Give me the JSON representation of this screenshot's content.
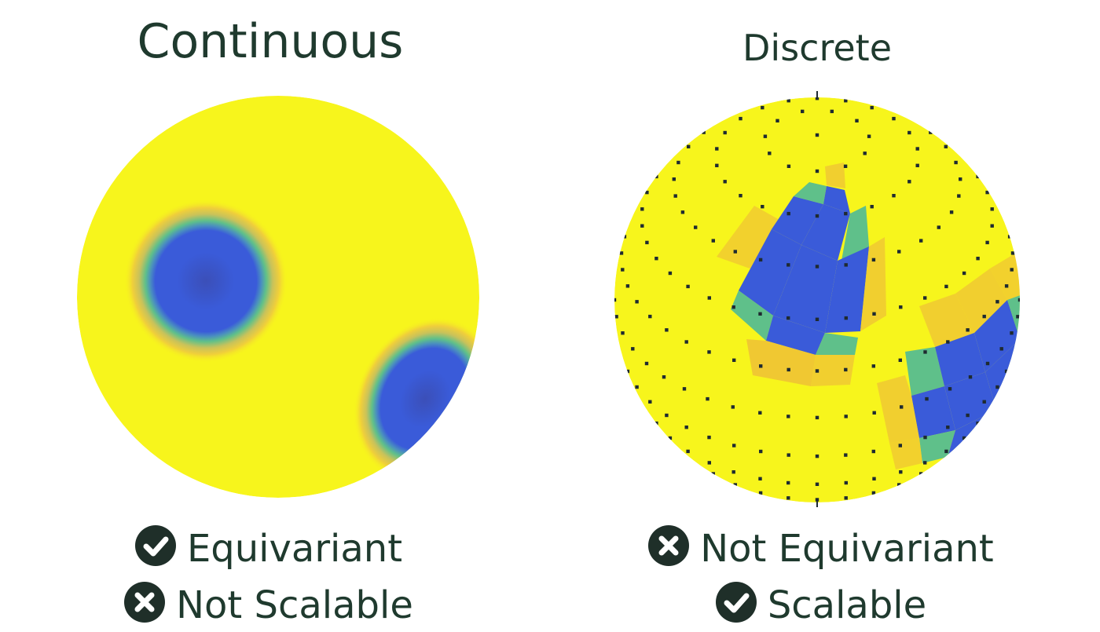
{
  "left": {
    "title": "Continuous",
    "properties": [
      {
        "icon": "check-circle-icon",
        "text": "Equivariant",
        "positive": true
      },
      {
        "icon": "x-circle-icon",
        "text": "Not Scalable",
        "positive": false
      }
    ]
  },
  "right": {
    "title": "Discrete",
    "properties": [
      {
        "icon": "x-circle-icon",
        "text": "Not Equivariant",
        "positive": false
      },
      {
        "icon": "check-circle-icon",
        "text": "Scalable",
        "positive": true
      }
    ]
  },
  "colors": {
    "sphere_yellow": "#f7f51c",
    "field_blue": "#3a5bd9",
    "field_green": "#5fc08a",
    "field_orange": "#f0c832",
    "dot": "#1e2a30",
    "text": "#1f3a2e"
  }
}
